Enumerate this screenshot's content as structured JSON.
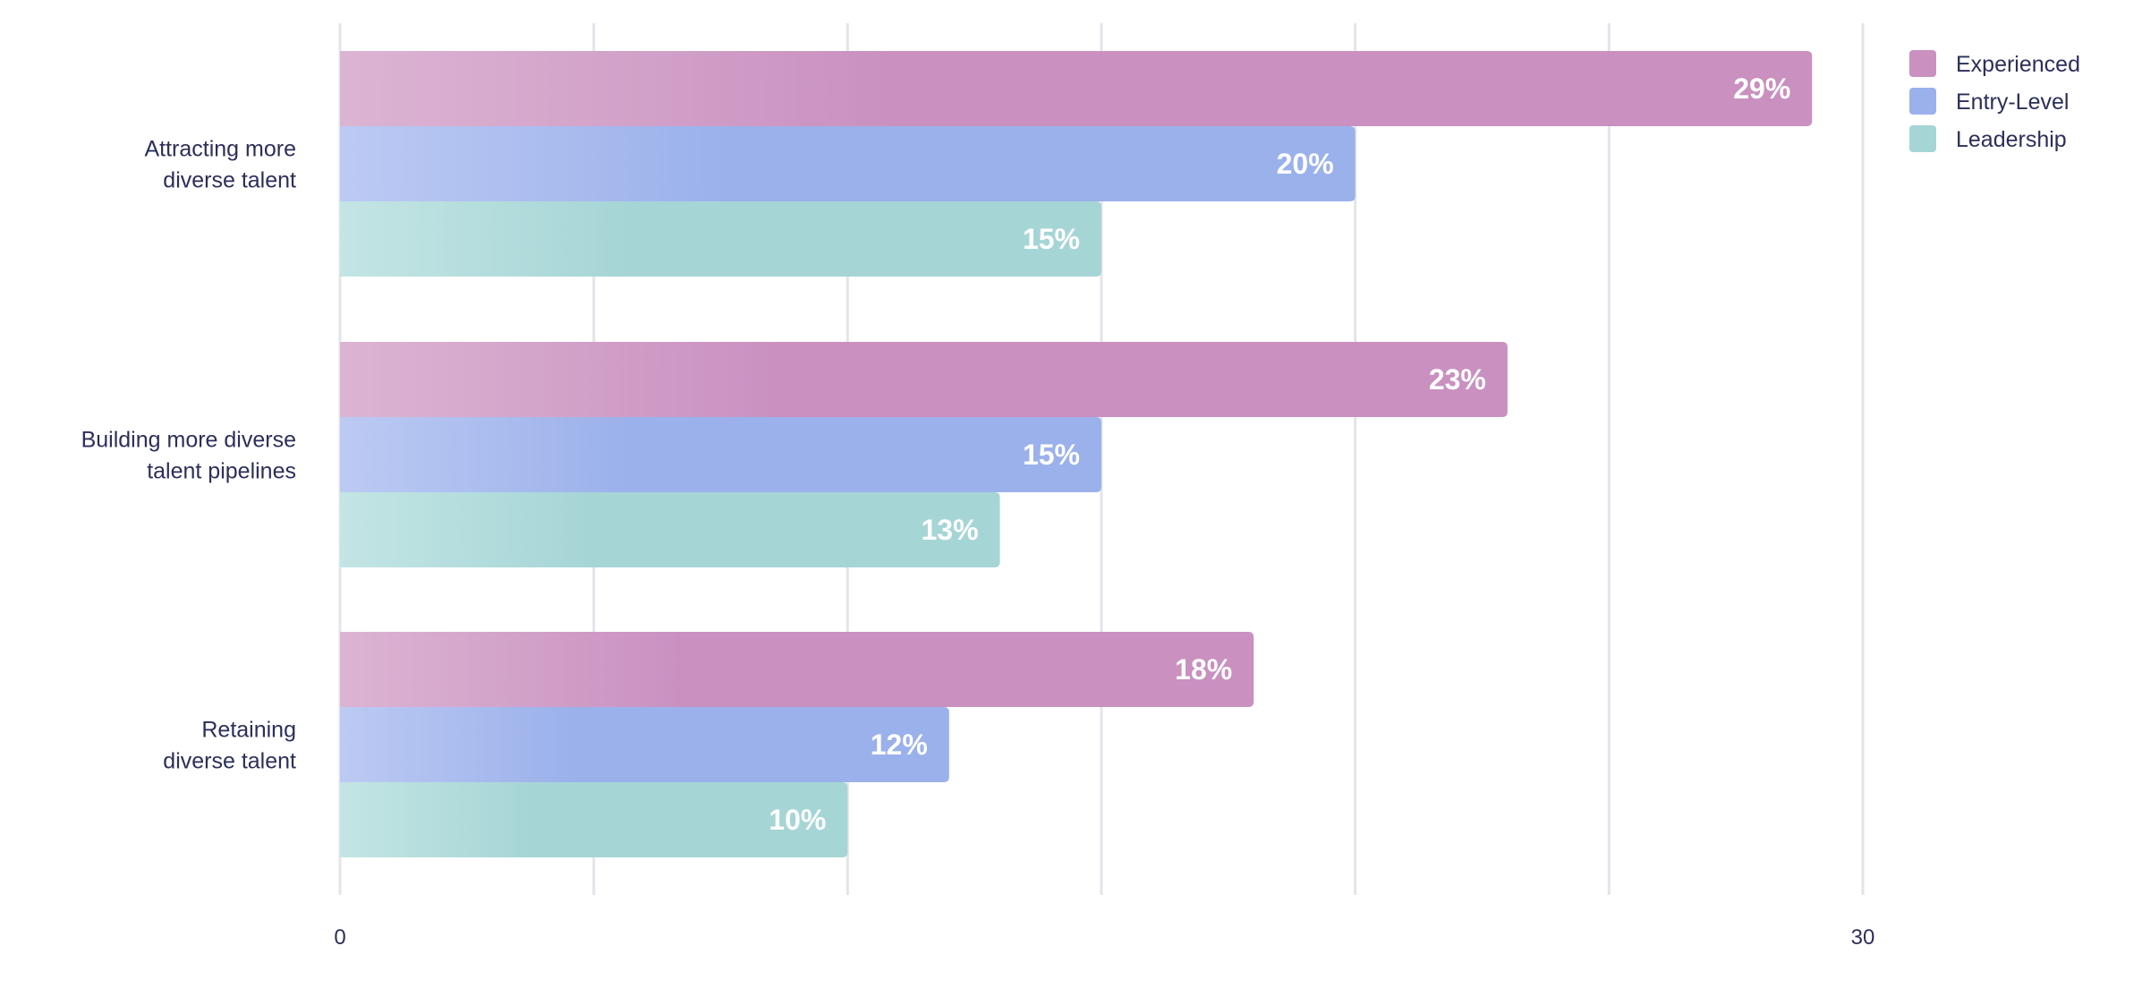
{
  "chart_data": {
    "type": "bar",
    "orientation": "horizontal",
    "categories": [
      [
        "Attracting more",
        "diverse talent"
      ],
      [
        "Building more diverse",
        "talent pipelines"
      ],
      [
        "Retaining",
        "diverse talent"
      ]
    ],
    "series": [
      {
        "name": "Experienced",
        "values": [
          29,
          23,
          18
        ],
        "color": "#c990c0",
        "color_light": "#dcb4d3"
      },
      {
        "name": "Entry-Level",
        "values": [
          20,
          15,
          12
        ],
        "color": "#9bb1eb",
        "color_light": "#bccaf3"
      },
      {
        "name": "Leadership",
        "values": [
          15,
          13,
          10
        ],
        "color": "#a6d5d6",
        "color_light": "#c3e5e4"
      }
    ],
    "value_suffix": "%",
    "xlim": [
      0,
      30
    ],
    "x_tick_labels": [
      {
        "value": 0,
        "label": "0"
      },
      {
        "value": 30,
        "label": "30"
      }
    ],
    "grid_values": [
      0,
      5,
      10,
      15,
      20,
      25,
      30
    ],
    "grid": true,
    "legend_position": "top-right",
    "title": "",
    "xlabel": "",
    "ylabel": ""
  }
}
